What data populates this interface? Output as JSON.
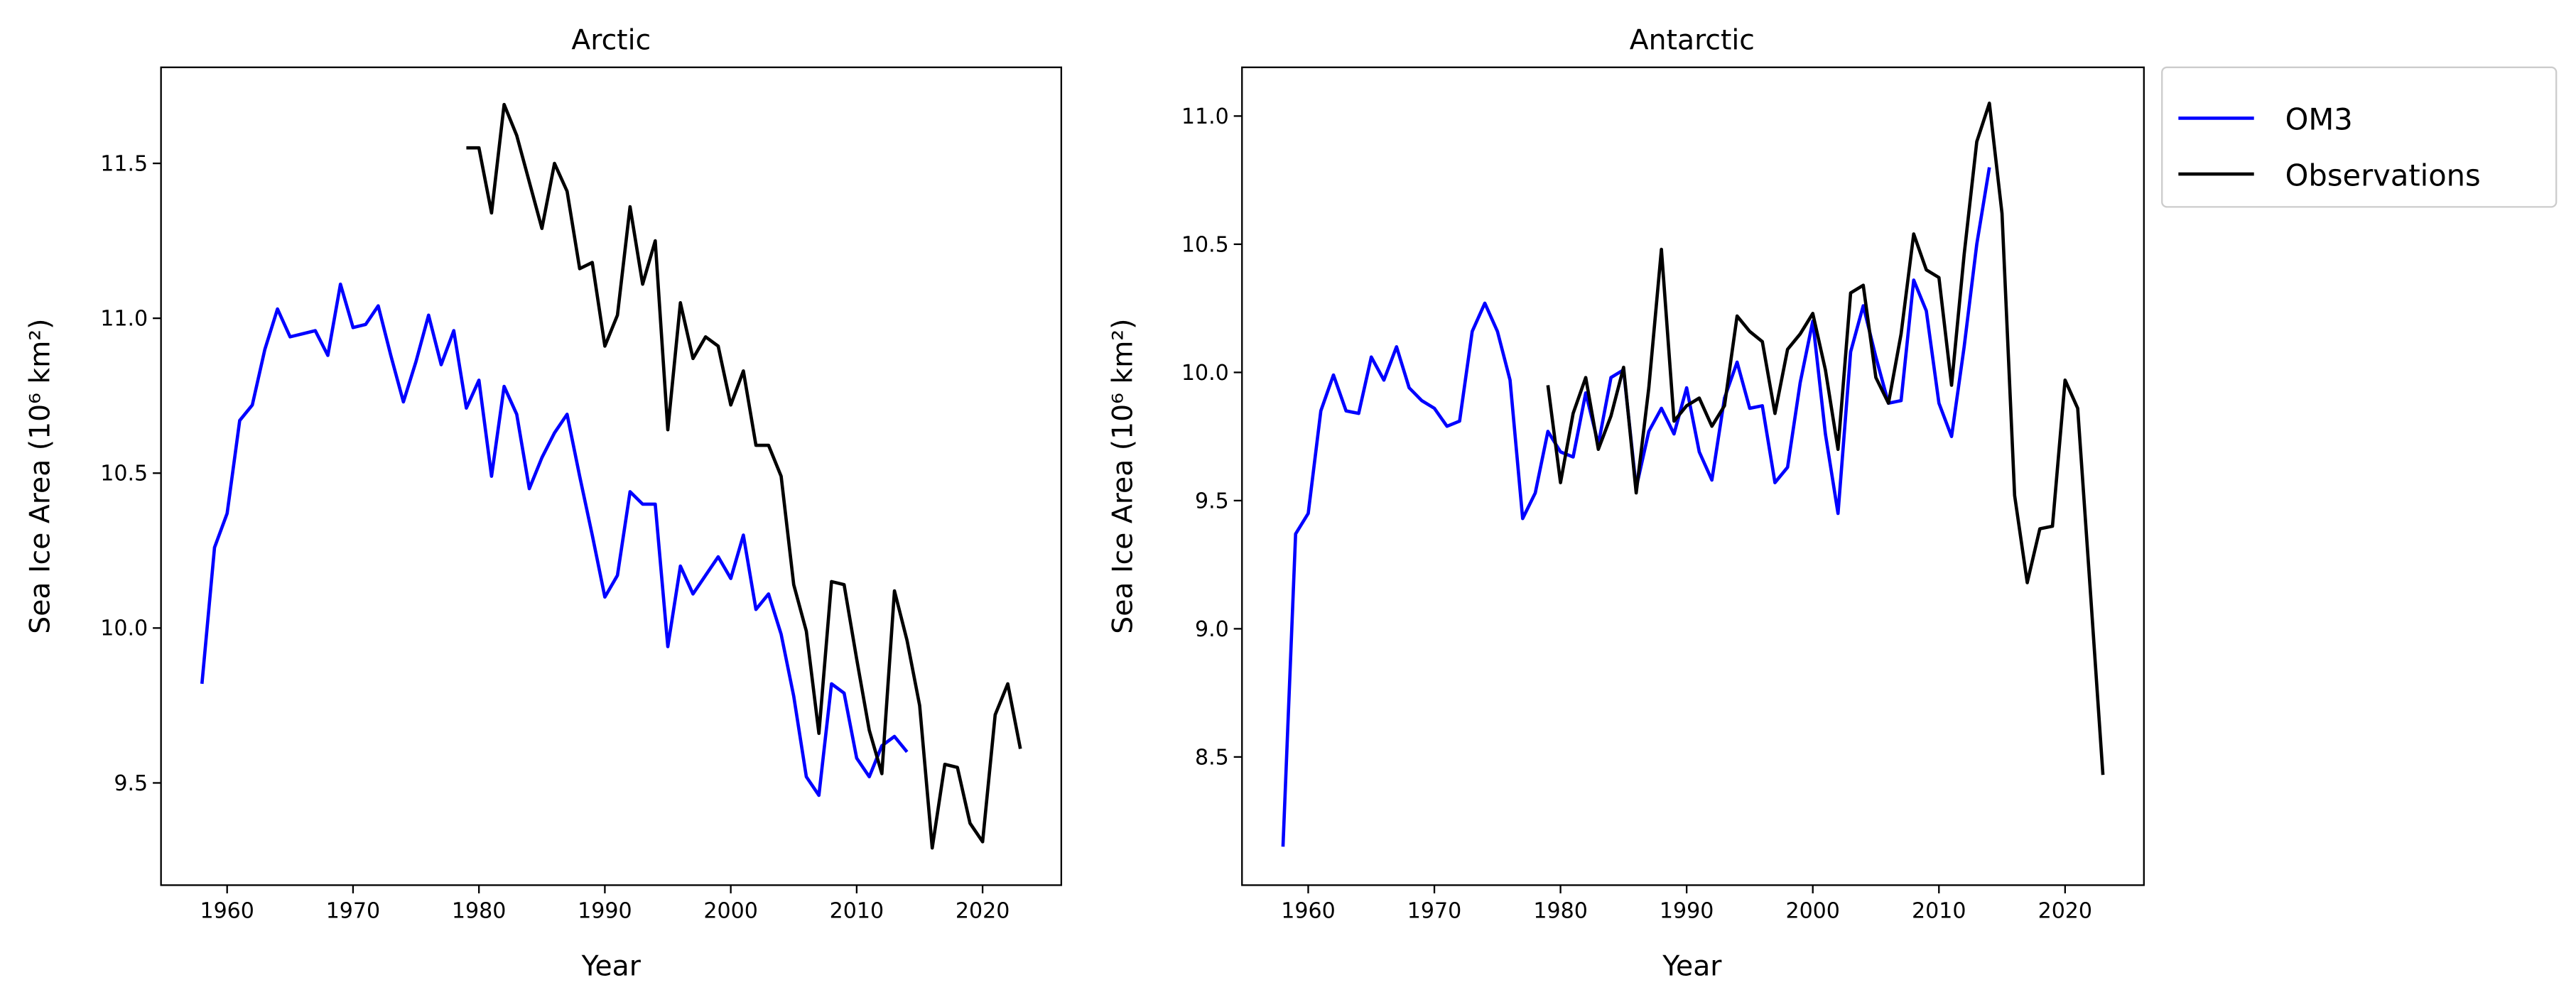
{
  "chart_data": [
    {
      "type": "line",
      "title": "Arctic",
      "xlabel": "Year",
      "ylabel": "Sea Ice Area (10⁶ km²)",
      "xlim": [
        1954.75,
        2026.25
      ],
      "ylim": [
        9.17,
        11.81
      ],
      "xticks": [
        1960,
        1970,
        1980,
        1990,
        2000,
        2010,
        2020
      ],
      "yticks": [
        "9.5",
        "10.0",
        "10.5",
        "11.0",
        "11.5"
      ],
      "grid": false,
      "series": [
        {
          "name": "OM3",
          "color": "#0000ff",
          "x": [
            1958,
            1959,
            1960,
            1961,
            1962,
            1963,
            1964,
            1965,
            1966,
            1967,
            1968,
            1969,
            1970,
            1971,
            1972,
            1973,
            1974,
            1975,
            1976,
            1977,
            1978,
            1979,
            1980,
            1981,
            1982,
            1983,
            1984,
            1985,
            1986,
            1987,
            1988,
            1989,
            1990,
            1991,
            1992,
            1993,
            1994,
            1995,
            1996,
            1997,
            1998,
            1999,
            2000,
            2001,
            2002,
            2003,
            2004,
            2005,
            2006,
            2007,
            2008,
            2009,
            2010,
            2011,
            2012,
            2013,
            2014
          ],
          "y": [
            9.82,
            10.26,
            10.37,
            10.67,
            10.72,
            10.9,
            11.03,
            10.94,
            10.95,
            10.96,
            10.88,
            11.11,
            10.97,
            10.98,
            11.04,
            10.88,
            10.73,
            10.86,
            11.01,
            10.85,
            10.96,
            10.71,
            10.8,
            10.49,
            10.78,
            10.69,
            10.45,
            10.55,
            10.63,
            10.69,
            10.49,
            10.3,
            10.1,
            10.17,
            10.44,
            10.4,
            10.4,
            9.94,
            10.2,
            10.11,
            10.17,
            10.23,
            10.16,
            10.3,
            10.06,
            10.11,
            9.98,
            9.78,
            9.52,
            9.46,
            9.82,
            9.79,
            9.58,
            9.52,
            9.62,
            9.65,
            9.6
          ]
        },
        {
          "name": "Observations",
          "color": "#000000",
          "x": [
            1979,
            1980,
            1981,
            1982,
            1983,
            1984,
            1985,
            1986,
            1987,
            1988,
            1989,
            1990,
            1991,
            1992,
            1993,
            1994,
            1995,
            1996,
            1997,
            1998,
            1999,
            2000,
            2001,
            2002,
            2003,
            2004,
            2005,
            2006,
            2007,
            2008,
            2009,
            2010,
            2011,
            2012,
            2013,
            2014,
            2015,
            2016,
            2017,
            2018,
            2019,
            2020,
            2021,
            2022,
            2023
          ],
          "y": [
            11.55,
            11.55,
            11.34,
            11.69,
            11.59,
            11.44,
            11.29,
            11.5,
            11.41,
            11.16,
            11.18,
            10.91,
            11.01,
            11.36,
            11.11,
            11.25,
            10.64,
            11.05,
            10.87,
            10.94,
            10.91,
            10.72,
            10.83,
            10.59,
            10.59,
            10.49,
            10.14,
            9.99,
            9.66,
            10.15,
            10.14,
            9.9,
            9.67,
            9.53,
            10.12,
            9.96,
            9.75,
            9.29,
            9.56,
            9.55,
            9.37,
            9.31,
            9.72,
            9.82,
            9.61
          ]
        }
      ]
    },
    {
      "type": "line",
      "title": "Antarctic",
      "xlabel": "Year",
      "ylabel": "Sea Ice Area (10⁶ km²)",
      "xlim": [
        1954.75,
        2026.25
      ],
      "ylim": [
        8.0,
        11.19
      ],
      "xticks": [
        1960,
        1970,
        1980,
        1990,
        2000,
        2010,
        2020
      ],
      "yticks": [
        "8.5",
        "9.0",
        "9.5",
        "10.0",
        "10.5",
        "11.0"
      ],
      "grid": false,
      "legend": {
        "placement": "outside upper right",
        "entries": [
          "OM3",
          "Observations"
        ]
      },
      "series": [
        {
          "name": "OM3",
          "color": "#0000ff",
          "x": [
            1958,
            1959,
            1960,
            1961,
            1962,
            1963,
            1964,
            1965,
            1966,
            1967,
            1968,
            1969,
            1970,
            1971,
            1972,
            1973,
            1974,
            1975,
            1976,
            1977,
            1978,
            1979,
            1980,
            1981,
            1982,
            1983,
            1984,
            1985,
            1986,
            1987,
            1988,
            1989,
            1990,
            1991,
            1992,
            1993,
            1994,
            1995,
            1996,
            1997,
            1998,
            1999,
            2000,
            2001,
            2002,
            2003,
            2004,
            2005,
            2006,
            2007,
            2008,
            2009,
            2010,
            2011,
            2012,
            2013,
            2014
          ],
          "y": [
            8.15,
            9.37,
            9.45,
            9.85,
            9.99,
            9.85,
            9.84,
            10.06,
            9.97,
            10.1,
            9.94,
            9.89,
            9.86,
            9.79,
            9.81,
            10.16,
            10.27,
            10.16,
            9.97,
            9.43,
            9.53,
            9.77,
            9.69,
            9.67,
            9.92,
            9.72,
            9.98,
            10.01,
            9.55,
            9.77,
            9.86,
            9.76,
            9.94,
            9.69,
            9.58,
            9.9,
            10.04,
            9.86,
            9.87,
            9.57,
            9.63,
            9.96,
            10.2,
            9.76,
            9.45,
            10.08,
            10.26,
            10.06,
            9.88,
            9.89,
            10.36,
            10.24,
            9.88,
            9.75,
            10.1,
            10.5,
            10.8
          ]
        },
        {
          "name": "Observations",
          "color": "#000000",
          "x": [
            1979,
            1980,
            1981,
            1982,
            1983,
            1984,
            1985,
            1986,
            1987,
            1988,
            1989,
            1990,
            1991,
            1992,
            1993,
            1994,
            1995,
            1996,
            1997,
            1998,
            1999,
            2000,
            2001,
            2002,
            2003,
            2004,
            2005,
            2006,
            2007,
            2008,
            2009,
            2010,
            2011,
            2012,
            2013,
            2014,
            2015,
            2016,
            2017,
            2018,
            2019,
            2020,
            2021,
            2022,
            2023
          ],
          "y": [
            9.95,
            9.57,
            9.84,
            9.98,
            9.7,
            9.83,
            10.02,
            9.53,
            9.94,
            10.48,
            9.81,
            9.87,
            9.9,
            9.79,
            9.87,
            10.22,
            10.16,
            10.12,
            9.84,
            10.09,
            10.15,
            10.23,
            10.01,
            9.7,
            10.31,
            10.34,
            9.98,
            9.88,
            10.15,
            10.54,
            10.4,
            10.37,
            9.95,
            10.46,
            10.9,
            11.05,
            10.62,
            9.52,
            9.18,
            9.39,
            9.4,
            9.97,
            9.86,
            9.15,
            8.43
          ]
        }
      ]
    }
  ]
}
